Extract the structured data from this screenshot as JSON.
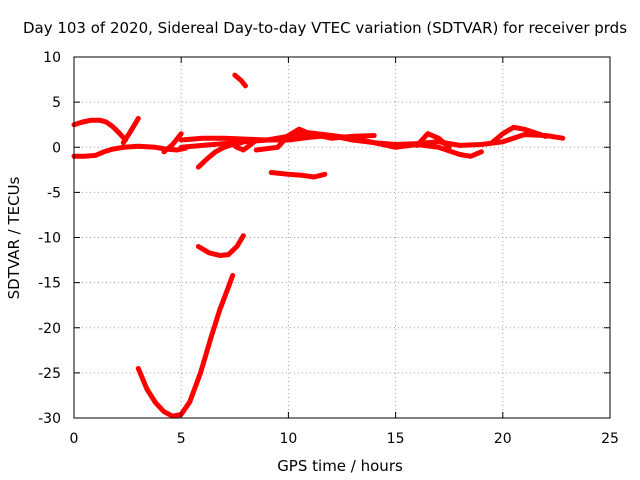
{
  "chart_data": {
    "type": "scatter",
    "title": "Day 103 of 2020, Sidereal Day-to-day VTEC variation (SDTVAR) for receiver prds",
    "xlabel": "GPS time / hours",
    "ylabel": "SDTVAR / TECUs",
    "xlim": [
      0,
      25
    ],
    "ylim": [
      -30,
      10
    ],
    "xticks": [
      0,
      5,
      10,
      15,
      20,
      25
    ],
    "yticks": [
      -30,
      -25,
      -20,
      -15,
      -10,
      -5,
      0,
      5,
      10
    ],
    "grid": true,
    "legend": "none",
    "marker_color": "#ff0000",
    "series": [
      {
        "x": [
          0.0,
          0.4,
          0.8,
          1.2,
          1.5,
          1.8,
          2.1,
          2.4
        ],
        "y": [
          2.5,
          2.8,
          3.0,
          3.0,
          2.8,
          2.3,
          1.6,
          0.8
        ]
      },
      {
        "x": [
          0.0,
          0.5,
          1.0,
          1.4,
          1.8,
          2.3,
          3.0,
          3.8,
          4.3,
          4.8,
          5.2
        ],
        "y": [
          -1.0,
          -1.0,
          -0.9,
          -0.5,
          -0.2,
          0.0,
          0.1,
          0.0,
          -0.2,
          -0.3,
          -0.1
        ]
      },
      {
        "x": [
          2.3,
          2.6,
          2.9,
          3.0
        ],
        "y": [
          0.5,
          1.6,
          2.8,
          3.2
        ]
      },
      {
        "x": [
          4.2,
          4.6,
          5.0
        ],
        "y": [
          -0.5,
          0.3,
          1.5
        ]
      },
      {
        "x": [
          5.0,
          6.0,
          7.0,
          8.0,
          9.0,
          10.0,
          11.0,
          12.0,
          13.0,
          14.0,
          15.0,
          16.0,
          17.0,
          18.0,
          19.0,
          20.0,
          21.0,
          22.0,
          22.8
        ],
        "y": [
          0.8,
          1.0,
          1.0,
          0.9,
          0.8,
          0.8,
          1.1,
          1.3,
          1.0,
          0.5,
          0.3,
          0.4,
          0.6,
          0.2,
          0.3,
          0.6,
          1.4,
          1.3,
          1.0
        ]
      },
      {
        "x": [
          5.0,
          6.0,
          7.0,
          8.0,
          9.0,
          10.0,
          11.0,
          12.0,
          13.0,
          14.0,
          15.0,
          16.0,
          17.0,
          18.0,
          18.5,
          19.0
        ],
        "y": [
          0.0,
          0.2,
          0.4,
          0.6,
          0.8,
          1.2,
          1.6,
          1.3,
          0.8,
          0.5,
          0.0,
          0.3,
          0.0,
          -0.8,
          -1.0,
          -0.5
        ]
      },
      {
        "x": [
          8.5,
          9.5,
          10.0,
          10.5,
          11.0,
          12.0,
          13.0,
          14.0
        ],
        "y": [
          -0.3,
          0.0,
          1.3,
          2.0,
          1.5,
          1.0,
          1.2,
          1.3
        ]
      },
      {
        "x": [
          16.0,
          16.5,
          17.0,
          17.5
        ],
        "y": [
          0.2,
          1.5,
          1.0,
          0.0
        ]
      },
      {
        "x": [
          19.5,
          20.0,
          20.5,
          21.0,
          21.5,
          22.0
        ],
        "y": [
          0.5,
          1.5,
          2.2,
          2.0,
          1.6,
          1.2
        ]
      },
      {
        "x": [
          5.8,
          6.2,
          6.6,
          7.0,
          7.4,
          7.8
        ],
        "y": [
          -2.2,
          -1.3,
          -0.5,
          0.0,
          0.3,
          0.5
        ]
      },
      {
        "x": [
          7.3,
          7.6,
          7.9,
          8.2,
          8.5
        ],
        "y": [
          0.5,
          0.0,
          -0.3,
          0.2,
          0.8
        ]
      },
      {
        "x": [
          7.5,
          7.8,
          8.0
        ],
        "y": [
          8.0,
          7.4,
          6.8
        ]
      },
      {
        "x": [
          9.2,
          10.0,
          10.6,
          11.2,
          11.7
        ],
        "y": [
          -2.8,
          -3.0,
          -3.1,
          -3.3,
          -3.0
        ]
      },
      {
        "x": [
          5.8,
          6.3,
          6.8,
          7.2,
          7.6,
          7.9
        ],
        "y": [
          -11.0,
          -11.7,
          -12.0,
          -11.9,
          -11.0,
          -9.8
        ]
      },
      {
        "x": [
          3.0,
          3.4,
          3.8,
          4.2,
          4.6,
          5.0,
          5.4,
          5.9,
          6.4,
          6.8,
          7.2,
          7.4
        ],
        "y": [
          -24.5,
          -26.8,
          -28.3,
          -29.3,
          -29.8,
          -29.6,
          -28.2,
          -25.0,
          -21.0,
          -18.0,
          -15.5,
          -14.2
        ]
      }
    ]
  }
}
